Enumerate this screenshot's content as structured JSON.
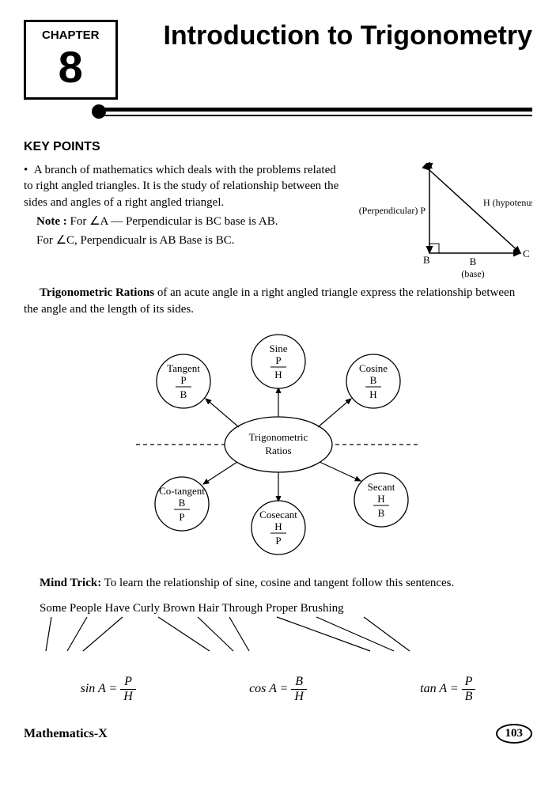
{
  "chapter": {
    "label": "CHAPTER",
    "number": "8"
  },
  "title": "Introduction to Trigonometry",
  "key_points_heading": "KEY POINTS",
  "intro": {
    "p1": "A branch of mathematics which deals with the problems related to right angled triangles. It is the study of relationship between the sides and angles of a right angled triangel.",
    "note_label": "Note :",
    "note1": " For ∠A — Perpendicular is BC base is AB.",
    "note2": "For ∠C, Perpendicualr is AB Base is BC."
  },
  "triangle": {
    "A": "A",
    "B": "B",
    "C": "C",
    "perp": "(Perpendicular) P",
    "hyp": "H (hypotenuse)",
    "base_b": "B",
    "base_label": "(base)"
  },
  "ratios_para_bold": "Trigonometric Rations",
  "ratios_para_rest": " of an acute angle in a right angled triangle express the relationship between the angle and the length of its sides.",
  "diagram": {
    "center": "Trigonometric\nRatios",
    "nodes": [
      {
        "name": "Sine",
        "num": "P",
        "den": "H"
      },
      {
        "name": "Cosine",
        "num": "B",
        "den": "H"
      },
      {
        "name": "Secant",
        "num": "H",
        "den": "B"
      },
      {
        "name": "Cosecant",
        "num": "H",
        "den": "P"
      },
      {
        "name": "Co-tangent",
        "num": "B",
        "den": "P"
      },
      {
        "name": "Tangent",
        "num": "P",
        "den": "B"
      }
    ]
  },
  "mind_trick_label": "Mind Trick:",
  "mind_trick_text": " To learn the relationship of sine, cosine and tangent follow this sentences.",
  "mnemonic": "Some People Have Curly Brown Hair Through Proper Brushing",
  "formulas": {
    "sin": {
      "lhs": "sin A =",
      "num": "P",
      "den": "H"
    },
    "cos": {
      "lhs": "cos A =",
      "num": "B",
      "den": "H"
    },
    "tan": {
      "lhs": "tan A =",
      "num": "P",
      "den": "B"
    }
  },
  "footer": {
    "book": "Mathematics-X",
    "page": "103"
  },
  "colors": {
    "text": "#000000",
    "bg": "#ffffff"
  }
}
